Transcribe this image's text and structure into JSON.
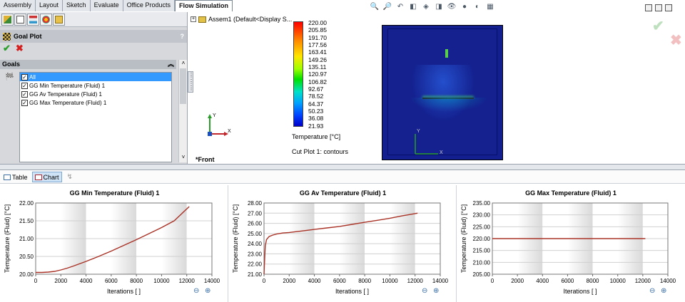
{
  "tabs": [
    "Assembly",
    "Layout",
    "Sketch",
    "Evaluate",
    "Office Products",
    "Flow Simulation"
  ],
  "active_tab": "Flow Simulation",
  "panel": {
    "title": "Goal Plot",
    "help": "?",
    "goals_header": "Goals",
    "goals": [
      {
        "label": "All",
        "checked": true,
        "selected": true
      },
      {
        "label": "GG Min Temperature (Fluid) 1",
        "checked": true,
        "selected": false
      },
      {
        "label": "GG Av Temperature (Fluid) 1",
        "checked": true,
        "selected": false
      },
      {
        "label": "GG Max Temperature (Fluid) 1",
        "checked": true,
        "selected": false
      }
    ]
  },
  "tree": {
    "root": "Assem1  (Default<Display S..."
  },
  "view": {
    "orientation": "*Front"
  },
  "legend": {
    "values": [
      "220.00",
      "205.85",
      "191.70",
      "177.56",
      "163.41",
      "149.26",
      "135.11",
      "120.97",
      "106.82",
      "92.67",
      "78.52",
      "64.37",
      "50.23",
      "36.08",
      "21.93"
    ],
    "title": "Temperature [°C]",
    "cut_plot": "Cut Plot 1: contours"
  },
  "bottom_tabs": [
    "Table",
    "Chart"
  ],
  "active_bottom_tab": "Chart",
  "colors": {
    "line": "#a93226",
    "accent": "#3399ff"
  },
  "chart_data": [
    {
      "type": "line",
      "title": "GG Min Temperature (Fluid) 1",
      "xlabel": "Iterations [ ]",
      "ylabel": "Temperature (Fluid) [°C]",
      "xlim": [
        0,
        14000
      ],
      "ylim": [
        20.0,
        22.0
      ],
      "yticks": [
        "20.00",
        "20.50",
        "21.00",
        "21.50",
        "22.00"
      ],
      "xticks": [
        "0",
        "2000",
        "4000",
        "6000",
        "8000",
        "10000",
        "12000",
        "14000"
      ],
      "series": [
        {
          "x": [
            0,
            500,
            1000,
            1500,
            2000,
            2500,
            3000,
            4000,
            5000,
            6000,
            7000,
            8000,
            9000,
            10000,
            11000,
            12200
          ],
          "y": [
            20.05,
            20.05,
            20.06,
            20.08,
            20.12,
            20.17,
            20.23,
            20.36,
            20.5,
            20.65,
            20.81,
            20.97,
            21.14,
            21.31,
            21.5,
            21.9
          ]
        }
      ]
    },
    {
      "type": "line",
      "title": "GG Av Temperature (Fluid) 1",
      "xlabel": "Iterations [ ]",
      "ylabel": "Temperature (Fluid) [°C]",
      "xlim": [
        0,
        14000
      ],
      "ylim": [
        21.0,
        28.0
      ],
      "yticks": [
        "21.00",
        "22.00",
        "23.00",
        "24.00",
        "25.00",
        "26.00",
        "27.00",
        "28.00"
      ],
      "xticks": [
        "0",
        "2000",
        "4000",
        "6000",
        "8000",
        "10000",
        "12000",
        "14000"
      ],
      "series": [
        {
          "x": [
            0,
            50,
            100,
            200,
            400,
            700,
            1000,
            1500,
            2000,
            3000,
            4000,
            5000,
            6000,
            7000,
            8000,
            9000,
            10000,
            11000,
            12200
          ],
          "y": [
            21.0,
            22.5,
            23.8,
            24.4,
            24.7,
            24.85,
            24.95,
            25.05,
            25.1,
            25.25,
            25.4,
            25.55,
            25.7,
            25.9,
            26.1,
            26.3,
            26.5,
            26.75,
            27.0
          ]
        }
      ]
    },
    {
      "type": "line",
      "title": "GG Max Temperature (Fluid) 1",
      "xlabel": "Iterations [ ]",
      "ylabel": "Temperature (Fluid) [°C]",
      "xlim": [
        0,
        14000
      ],
      "ylim": [
        205.0,
        235.0
      ],
      "yticks": [
        "205.00",
        "210.00",
        "215.00",
        "220.00",
        "225.00",
        "230.00",
        "235.00"
      ],
      "xticks": [
        "0",
        "2000",
        "4000",
        "6000",
        "8000",
        "10000",
        "12000",
        "14000"
      ],
      "series": [
        {
          "x": [
            0,
            12200
          ],
          "y": [
            220.0,
            220.0
          ]
        }
      ]
    }
  ]
}
